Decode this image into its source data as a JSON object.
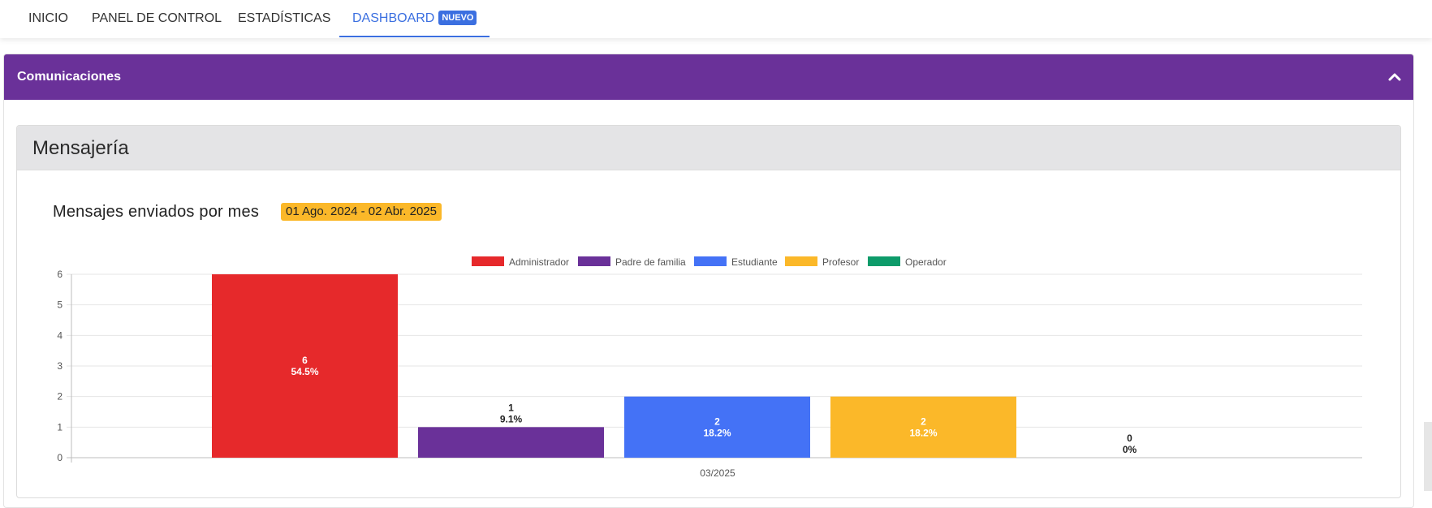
{
  "nav": {
    "tabs": [
      {
        "label": "INICIO"
      },
      {
        "label": "PANEL DE CONTROL"
      },
      {
        "label": "ESTADÍSTICAS"
      },
      {
        "label": "DASHBOARD",
        "badge": "NUEVO",
        "active": true
      }
    ]
  },
  "panel": {
    "title": "Comunicaciones",
    "collapse_icon": "chevron-up-icon"
  },
  "card": {
    "title": "Mensajería"
  },
  "chart": {
    "title": "Mensajes enviados por mes",
    "date_range": "01 Ago. 2024 - 02 Abr. 2025"
  },
  "colors": {
    "accent": "#3b6fe0",
    "panel_header": "#6a3199",
    "badge": "#fbb829"
  },
  "chart_data": {
    "type": "bar",
    "categories": [
      "03/2025"
    ],
    "ylim": [
      0,
      6
    ],
    "yticks": [
      "0",
      "1",
      "2",
      "3",
      "4",
      "5",
      "6"
    ],
    "legend_position": "top",
    "grid": true,
    "series": [
      {
        "name": "Administrador",
        "color": "#e6292b",
        "values": [
          6
        ],
        "value_label": "6",
        "percent_label": "54.5%"
      },
      {
        "name": "Padre de familia",
        "color": "#6a3199",
        "values": [
          1
        ],
        "value_label": "1",
        "percent_label": "9.1%"
      },
      {
        "name": "Estudiante",
        "color": "#4472f6",
        "values": [
          2
        ],
        "value_label": "2",
        "percent_label": "18.2%"
      },
      {
        "name": "Profesor",
        "color": "#fbb829",
        "values": [
          2
        ],
        "value_label": "2",
        "percent_label": "18.2%"
      },
      {
        "name": "Operador",
        "color": "#0d9b6a",
        "values": [
          0
        ],
        "value_label": "0",
        "percent_label": "0%"
      }
    ]
  }
}
